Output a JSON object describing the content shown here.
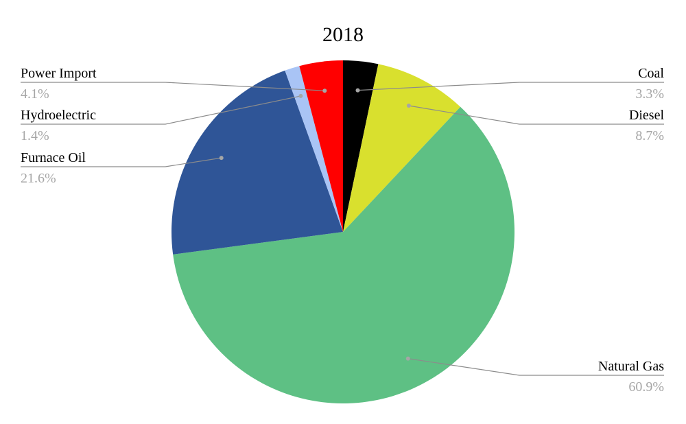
{
  "chart_data": {
    "type": "pie",
    "title": "2018",
    "slices": [
      {
        "label": "Coal",
        "value": 3.3,
        "value_label": "3.3%",
        "color": "#000000"
      },
      {
        "label": "Diesel",
        "value": 8.7,
        "value_label": "8.7%",
        "color": "#d9e02e"
      },
      {
        "label": "Natural Gas",
        "value": 60.9,
        "value_label": "60.9%",
        "color": "#5ec084"
      },
      {
        "label": "Furnace Oil",
        "value": 21.6,
        "value_label": "21.6%",
        "color": "#2f5597"
      },
      {
        "label": "Hydroelectric",
        "value": 1.4,
        "value_label": "1.4%",
        "color": "#a9c4f5"
      },
      {
        "label": "Power Import",
        "value": 4.1,
        "value_label": "4.1%",
        "color": "#ff0000"
      }
    ],
    "start_angle": "top",
    "direction": "clockwise",
    "legend": "none",
    "data_labels": "outside with leader lines"
  }
}
